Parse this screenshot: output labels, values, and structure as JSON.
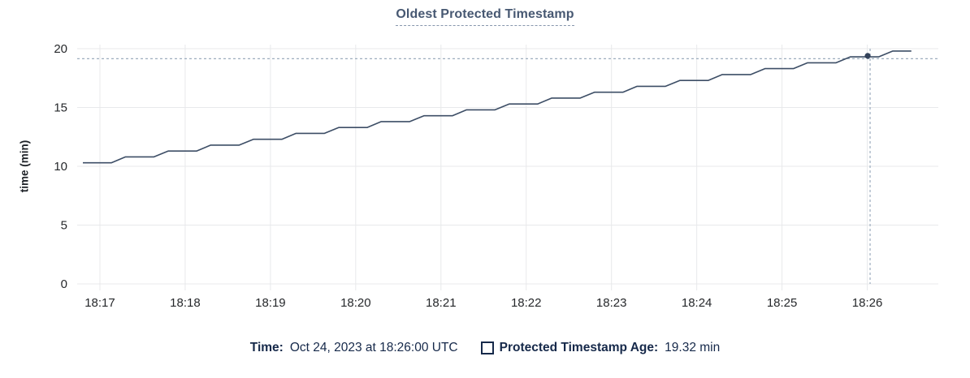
{
  "title": {
    "text": "Oldest Protected Timestamp"
  },
  "colors": {
    "line": "#3d4e66",
    "dot": "#33425a",
    "grid": "#e8e9eb",
    "crosshair": "#9cadbe",
    "title": "#475872",
    "title_underline": "#8796ad",
    "tick_text": "#26282b",
    "footer_text": "#16294a",
    "background": "#ffffff"
  },
  "chart_data": {
    "type": "line",
    "title": "Oldest Protected Timestamp",
    "xlabel": "",
    "ylabel": "time (min)",
    "ylim": [
      0,
      20
    ],
    "yticks": [
      0,
      5,
      10,
      15,
      20
    ],
    "grid": true,
    "x_axis": {
      "domain_seconds": 606,
      "start_time": "18:16:44",
      "end_time": "18:26:50",
      "ticks": [
        {
          "label": "18:17",
          "offset_s": 16
        },
        {
          "label": "18:18",
          "offset_s": 76
        },
        {
          "label": "18:19",
          "offset_s": 136
        },
        {
          "label": "18:20",
          "offset_s": 196
        },
        {
          "label": "18:21",
          "offset_s": 256
        },
        {
          "label": "18:22",
          "offset_s": 316
        },
        {
          "label": "18:23",
          "offset_s": 376
        },
        {
          "label": "18:24",
          "offset_s": 436
        },
        {
          "label": "18:25",
          "offset_s": 496
        },
        {
          "label": "18:26",
          "offset_s": 556
        }
      ]
    },
    "series": [
      {
        "name": "Protected Timestamp Age",
        "unit": "min",
        "points": [
          [
            4,
            10.3
          ],
          [
            24,
            10.3
          ],
          [
            34,
            10.8
          ],
          [
            54,
            10.8
          ],
          [
            64,
            11.3
          ],
          [
            84,
            11.3
          ],
          [
            94,
            11.8
          ],
          [
            114,
            11.8
          ],
          [
            124,
            12.3
          ],
          [
            144,
            12.3
          ],
          [
            154,
            12.8
          ],
          [
            174,
            12.8
          ],
          [
            184,
            13.3
          ],
          [
            204,
            13.3
          ],
          [
            214,
            13.8
          ],
          [
            234,
            13.8
          ],
          [
            244,
            14.3
          ],
          [
            264,
            14.3
          ],
          [
            274,
            14.8
          ],
          [
            294,
            14.8
          ],
          [
            304,
            15.3
          ],
          [
            324,
            15.3
          ],
          [
            334,
            15.8
          ],
          [
            354,
            15.8
          ],
          [
            364,
            16.3
          ],
          [
            384,
            16.3
          ],
          [
            394,
            16.8
          ],
          [
            414,
            16.8
          ],
          [
            424,
            17.3
          ],
          [
            444,
            17.3
          ],
          [
            454,
            17.8
          ],
          [
            474,
            17.8
          ],
          [
            484,
            18.3
          ],
          [
            504,
            18.3
          ],
          [
            514,
            18.8
          ],
          [
            534,
            18.8
          ],
          [
            544,
            19.3
          ],
          [
            564,
            19.3
          ],
          [
            574,
            19.8
          ],
          [
            587,
            19.8
          ]
        ]
      }
    ],
    "crosshair": {
      "time": "18:26:00",
      "offset_s": 558,
      "value": 19.32
    },
    "legend_position": "bottom"
  },
  "footer": {
    "time_label": "Time:",
    "time_value": "Oct 24, 2023 at 18:26:00 UTC",
    "age_label": "Protected Timestamp Age:",
    "age_value": "19.32 min"
  }
}
